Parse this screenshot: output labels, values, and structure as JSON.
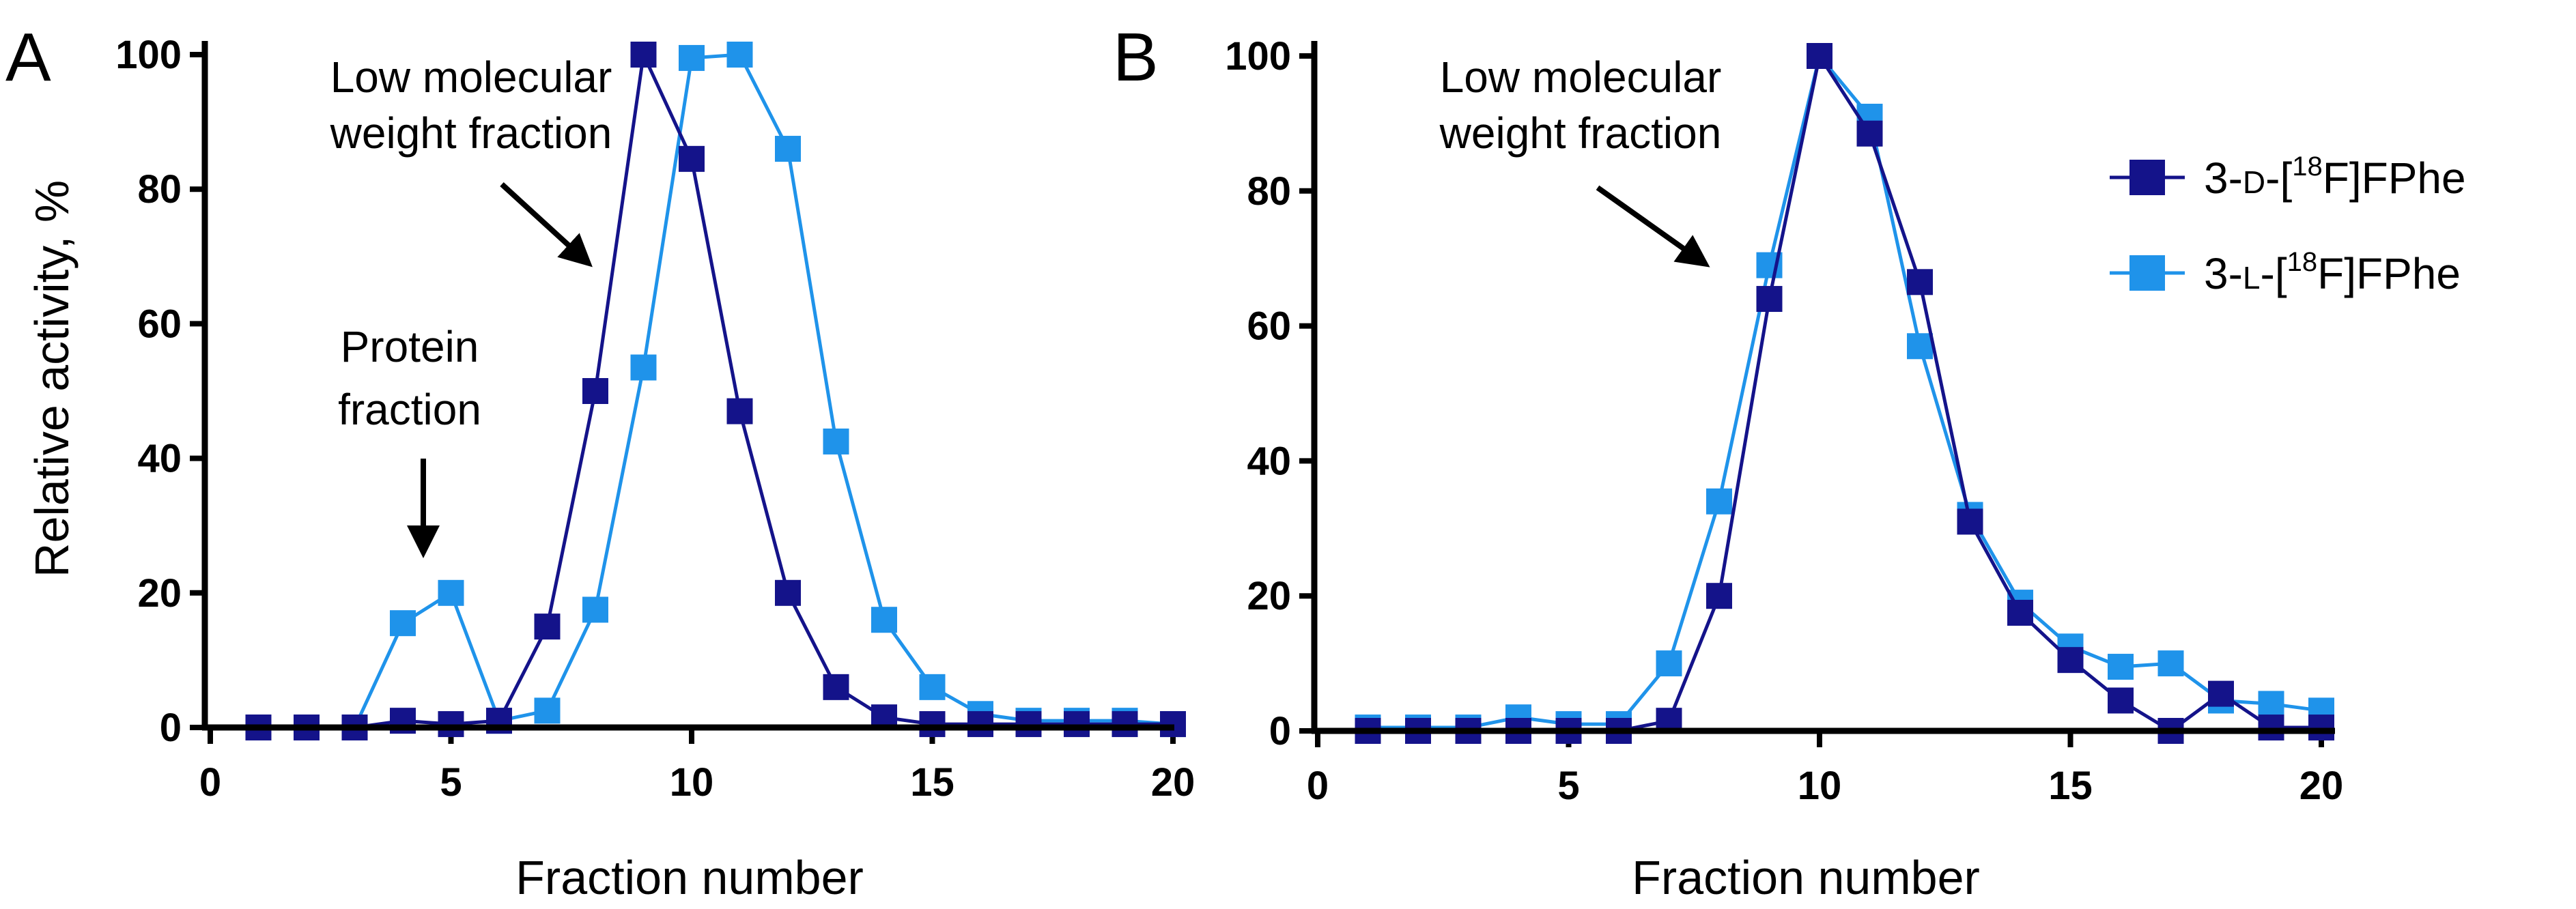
{
  "colors": {
    "dark": "#14138a",
    "light": "#1f93ea"
  },
  "chart_data": [
    {
      "type": "line",
      "panel": "A",
      "xlabel": "Fraction number",
      "ylabel": "Relative activity, %",
      "xlim": [
        0,
        21
      ],
      "ylim": [
        0,
        100
      ],
      "xticks": [
        0,
        5,
        10,
        15,
        20
      ],
      "yticks": [
        0,
        20,
        40,
        60,
        80,
        100
      ],
      "x": [
        1,
        2,
        3,
        4,
        5,
        6,
        7,
        8,
        9,
        10,
        11,
        12,
        13,
        14,
        15,
        16,
        17,
        18,
        19,
        20
      ],
      "series": [
        {
          "name": "3-D-[18F]FPhe",
          "color": "#14138a",
          "values": [
            0,
            0,
            0,
            1,
            0.5,
            1,
            15,
            50,
            100,
            84.5,
            47,
            20,
            6,
            1.5,
            0.5,
            0.5,
            0.5,
            0.5,
            0.5,
            0.5
          ]
        },
        {
          "name": "3-L-[18F]FPhe",
          "color": "#1f93ea",
          "values": [
            0,
            0,
            0,
            15.5,
            20,
            1,
            2.5,
            17.5,
            53.5,
            99.5,
            100,
            86,
            42.5,
            16,
            6,
            2,
            1,
            1,
            1,
            0.5
          ]
        }
      ],
      "annotations": [
        {
          "lines": [
            "Low molecular",
            "weight fraction"
          ]
        },
        {
          "lines": [
            "Protein",
            "fraction"
          ]
        }
      ]
    },
    {
      "type": "line",
      "panel": "B",
      "xlabel": "Fraction number",
      "ylabel": "",
      "xlim": [
        0,
        21
      ],
      "ylim": [
        0,
        100
      ],
      "xticks": [
        0,
        5,
        10,
        15,
        20
      ],
      "yticks": [
        0,
        20,
        40,
        60,
        80,
        100
      ],
      "x": [
        1,
        2,
        3,
        4,
        5,
        6,
        7,
        8,
        9,
        10,
        11,
        12,
        13,
        14,
        15,
        16,
        17,
        18,
        19,
        20
      ],
      "series": [
        {
          "name": "3-D-[18F]FPhe",
          "color": "#14138a",
          "values": [
            0,
            0,
            0,
            0,
            0,
            0,
            1.5,
            20,
            64,
            100,
            88.5,
            66.5,
            31,
            17.5,
            10.5,
            4.5,
            0,
            5.5,
            0.5,
            0.5
          ]
        },
        {
          "name": "3-L-[18F]FPhe",
          "color": "#1f93ea",
          "values": [
            0.5,
            0.5,
            0.5,
            2,
            1,
            1,
            10,
            34,
            69,
            100,
            91,
            57,
            32,
            19,
            12.5,
            9.5,
            10,
            4.5,
            4,
            3
          ]
        }
      ],
      "annotations": [
        {
          "lines": [
            "Low molecular",
            "weight fraction"
          ]
        }
      ],
      "legend": {
        "position": "right",
        "entries": [
          {
            "prefix": "3-",
            "smallcaps": "D",
            "mid": "-[",
            "sup": "18",
            "suffix": "F]FPhe"
          },
          {
            "prefix": "3-",
            "smallcaps": "L",
            "mid": "-[",
            "sup": "18",
            "suffix": "F]FPhe"
          }
        ]
      }
    }
  ]
}
